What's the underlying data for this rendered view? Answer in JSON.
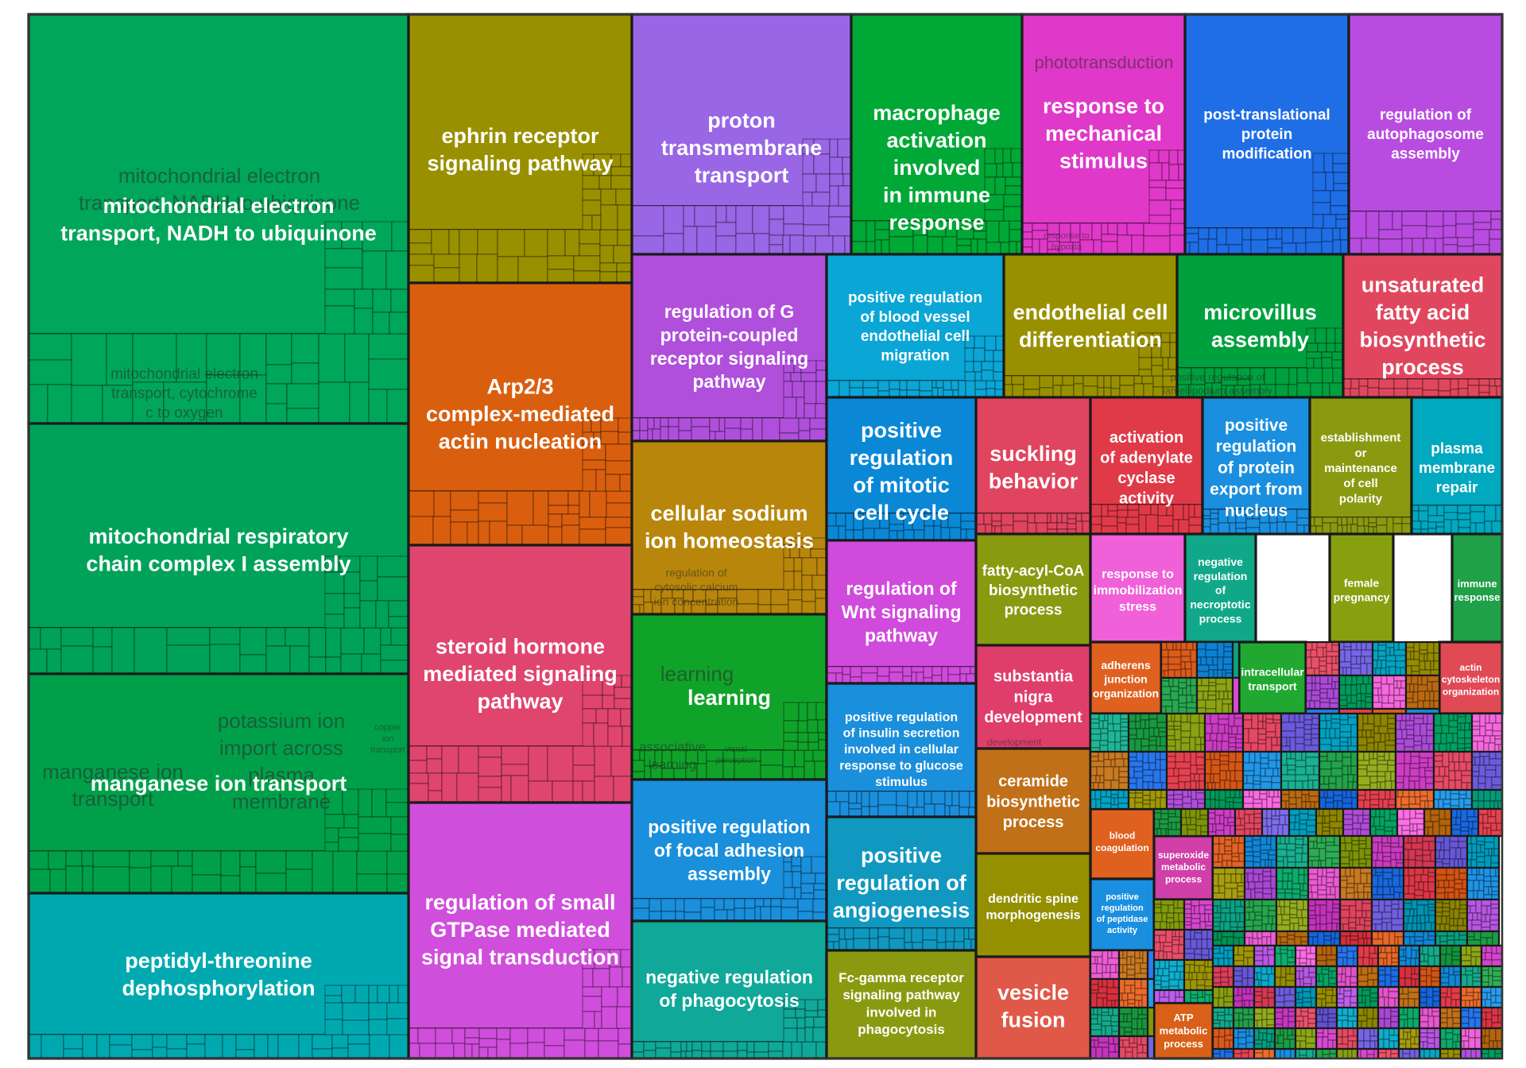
{
  "chart_data": {
    "type": "treemap",
    "title": "",
    "groups": [
      {
        "name": "mitochondrial electron transport, NADH to ubiquinone",
        "color": "#00A65A",
        "terms": [
          "mitochondrial electron transport, NADH to ubiquinone",
          "mitochondrial electron transport, cytochrome c to oxygen"
        ]
      },
      {
        "name": "ephrin receptor signaling pathway",
        "color": "#999000",
        "terms": [
          "ephrin receptor signaling pathway"
        ]
      },
      {
        "name": "proton transmembrane transport",
        "color": "#9966E6",
        "terms": [
          "proton transmembrane transport"
        ]
      },
      {
        "name": "macrophage activation involved in immune response",
        "color": "#00A836",
        "terms": [
          "macrophage activation involved in immune response"
        ]
      },
      {
        "name": "response to mechanical stimulus",
        "color": "#E038C8",
        "terms": [
          "phototransduction",
          "response to mechanical stimulus",
          "response to hypoxia"
        ]
      },
      {
        "name": "post-translational protein modification",
        "color": "#1F6EE6",
        "terms": [
          "post-translational protein modification"
        ]
      },
      {
        "name": "regulation of autophagosome assembly",
        "color": "#B84CE0",
        "terms": [
          "regulation of autophagosome assembly"
        ]
      },
      {
        "name": "mitochondrial respiratory chain complex I assembly",
        "color": "#00A25A",
        "terms": [
          "mitochondrial respiratory chain complex I assembly"
        ]
      },
      {
        "name": "Arp2/3 complex-mediated actin nucleation",
        "color": "#D95F0E",
        "terms": [
          "Arp2/3 complex-mediated actin nucleation"
        ]
      },
      {
        "name": "regulation of G protein-coupled receptor signaling pathway",
        "color": "#B04FDC",
        "terms": [
          "regulation of G protein-coupled receptor signaling pathway"
        ]
      },
      {
        "name": "positive regulation of blood vessel endothelial cell migration",
        "color": "#0AA6D6",
        "terms": [
          "positive regulation of blood vessel endothelial cell migration"
        ]
      },
      {
        "name": "endothelial cell differentiation",
        "color": "#999000",
        "terms": [
          "endothelial cell differentiation"
        ]
      },
      {
        "name": "microvillus assembly",
        "color": "#00A03F",
        "terms": [
          "microvillus assembly",
          "positive regulation of lamellipodium assembly"
        ]
      },
      {
        "name": "unsaturated fatty acid biosynthetic process",
        "color": "#E0475E",
        "terms": [
          "unsaturated fatty acid biosynthetic process"
        ]
      },
      {
        "name": "manganese ion transport",
        "color": "#00A04A",
        "terms": [
          "manganese ion transport",
          "potassium ion import across plasma membrane",
          "copper ion transport"
        ]
      },
      {
        "name": "cellular sodium ion homeostasis",
        "color": "#B8860B",
        "terms": [
          "cellular sodium ion homeostasis",
          "regulation of cytosolic calcium ion concentration"
        ]
      },
      {
        "name": "positive regulation of mitotic cell cycle",
        "color": "#0A88D6",
        "terms": [
          "positive regulation of mitotic cell cycle"
        ]
      },
      {
        "name": "suckling behavior",
        "color": "#E0445E",
        "terms": [
          "suckling behavior"
        ]
      },
      {
        "name": "activation of adenylate cyclase activity",
        "color": "#E03A48",
        "terms": [
          "activation of adenylate cyclase activity"
        ]
      },
      {
        "name": "positive regulation of protein export from nucleus",
        "color": "#1A8FE0",
        "terms": [
          "positive regulation of protein export from nucleus"
        ]
      },
      {
        "name": "establishment or maintenance of cell polarity",
        "color": "#8A9A10",
        "terms": [
          "establishment or maintenance of cell polarity"
        ]
      },
      {
        "name": "plasma membrane repair",
        "color": "#00A8C0",
        "terms": [
          "plasma membrane repair"
        ]
      },
      {
        "name": "steroid hormone mediated signaling pathway",
        "color": "#E0456E",
        "terms": [
          "steroid hormone mediated signaling pathway"
        ]
      },
      {
        "name": "learning",
        "color": "#10A32A",
        "terms": [
          "learning",
          "associative learning",
          "visual perception"
        ]
      },
      {
        "name": "regulation of Wnt signaling pathway",
        "color": "#D04ADC",
        "terms": [
          "regulation of Wnt signaling pathway"
        ]
      },
      {
        "name": "fatty-acyl-CoA biosynthetic process",
        "color": "#889A10",
        "terms": [
          "fatty-acyl-CoA biosynthetic process"
        ]
      },
      {
        "name": "response to immobilization stress",
        "color": "#F060D8",
        "terms": [
          "response to immobilization stress"
        ]
      },
      {
        "name": "negative regulation of necroptotic process",
        "color": "#10A888",
        "terms": [
          "negative regulation of necroptotic process"
        ]
      },
      {
        "name": "female pregnancy",
        "color": "#88A010",
        "terms": [
          "female pregnancy"
        ]
      },
      {
        "name": "immune response",
        "color": "#20A048",
        "terms": [
          "immune response"
        ]
      },
      {
        "name": "substantia nigra development",
        "color": "#E03E6A",
        "terms": [
          "substantia nigra development"
        ]
      },
      {
        "name": "adherens junction organization",
        "color": "#E06020",
        "terms": [
          "adherens junction organization"
        ]
      },
      {
        "name": "intracellular transport",
        "color": "#20A830",
        "terms": [
          "intracellular transport"
        ]
      },
      {
        "name": "actin cytoskeleton organization",
        "color": "#E04A54",
        "terms": [
          "actin cytoskeleton organization"
        ]
      },
      {
        "name": "positive regulation of insulin secretion involved in cellular response to glucose stimulus",
        "color": "#1A8FDC",
        "terms": [
          "positive regulation of insulin secretion involved in cellular response to glucose stimulus"
        ]
      },
      {
        "name": "ceramide biosynthetic process",
        "color": "#C07018",
        "terms": [
          "ceramide biosynthetic process"
        ]
      },
      {
        "name": "positive regulation of focal adhesion assembly",
        "color": "#1A8FDC",
        "terms": [
          "positive regulation of focal adhesion assembly"
        ]
      },
      {
        "name": "regulation of small GTPase mediated signal transduction",
        "color": "#D04EDC",
        "terms": [
          "regulation of small GTPase mediated signal transduction"
        ]
      },
      {
        "name": "positive regulation of angiogenesis",
        "color": "#1098C0",
        "terms": [
          "positive regulation of angiogenesis"
        ]
      },
      {
        "name": "dendritic spine morphogenesis",
        "color": "#959000",
        "terms": [
          "dendritic spine morphogenesis"
        ]
      },
      {
        "name": "blood coagulation",
        "color": "#E06020",
        "terms": [
          "blood coagulation"
        ]
      },
      {
        "name": "superoxide metabolic process",
        "color": "#D040A8",
        "terms": [
          "superoxide metabolic process"
        ]
      },
      {
        "name": "positive regulation of peptidase activity",
        "color": "#1A8FE0",
        "terms": [
          "positive regulation of peptidase activity"
        ]
      },
      {
        "name": "peptidyl-threonine dephosphorylation",
        "color": "#00A9B0",
        "terms": [
          "peptidyl-threonine dephosphorylation"
        ]
      },
      {
        "name": "negative regulation of phagocytosis",
        "color": "#10A898",
        "terms": [
          "negative regulation of phagocytosis"
        ]
      },
      {
        "name": "Fc-gamma receptor signaling pathway involved in phagocytosis",
        "color": "#8A9A10",
        "terms": [
          "Fc-gamma receptor signaling pathway involved in phagocytosis"
        ]
      },
      {
        "name": "vesicle fusion",
        "color": "#E05848",
        "terms": [
          "vesicle fusion"
        ]
      },
      {
        "name": "ATP metabolic process",
        "color": "#D86018",
        "terms": [
          "ATP metabolic process"
        ]
      }
    ]
  }
}
